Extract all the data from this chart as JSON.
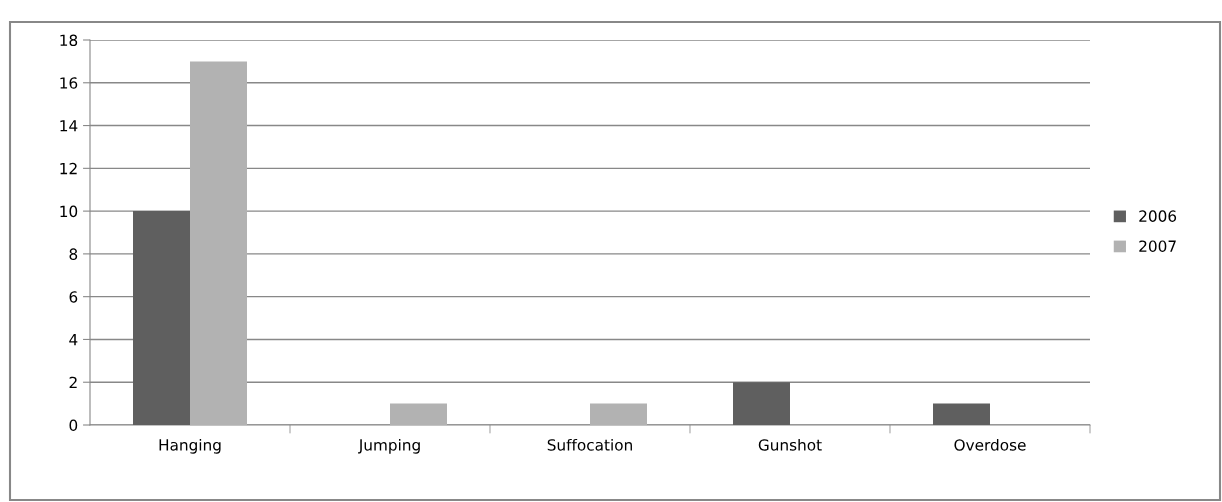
{
  "chart_data": {
    "type": "bar",
    "categories": [
      "Hanging",
      "Jumping",
      "Suffocation",
      "Gunshot",
      "Overdose"
    ],
    "series": [
      {
        "name": "2006",
        "color": "#5f5f5f",
        "values": [
          10,
          0,
          0,
          2,
          1
        ]
      },
      {
        "name": "2007",
        "color": "#b2b2b2",
        "values": [
          17,
          1,
          1,
          0,
          0
        ]
      }
    ],
    "ylim": [
      0,
      18
    ],
    "yticks": [
      0,
      2,
      4,
      6,
      8,
      10,
      12,
      14,
      16,
      18
    ],
    "grid": "y",
    "legend": "right"
  }
}
